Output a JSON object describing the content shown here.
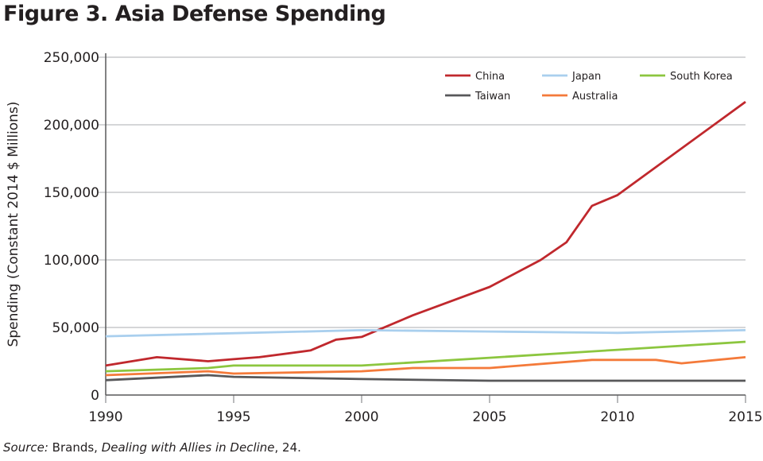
{
  "title": "Figure 3. Asia Defense Spending",
  "source": {
    "label": "Source:",
    "text1": " Brands, ",
    "work": "Dealing with Allies in Decline",
    "text2": ", 24."
  },
  "chart_data": {
    "type": "line",
    "title": "Figure 3. Asia Defense Spending",
    "xlabel": "",
    "ylabel": "Spending (Constant 2014 $ Millions)",
    "xlim": [
      1990,
      2015
    ],
    "ylim": [
      0,
      250000
    ],
    "xticks": [
      1990,
      1995,
      2000,
      2005,
      2010,
      2015
    ],
    "yticks": [
      0,
      50000,
      100000,
      150000,
      200000,
      250000
    ],
    "ytick_labels": [
      "0",
      "50,000",
      "100,000",
      "150,000",
      "200,000",
      "250,000"
    ],
    "grid": "horizontal",
    "legend": "top-right",
    "series": [
      {
        "name": "China",
        "color": "#c0282d",
        "x": [
          1990,
          1992,
          1994,
          1995,
          1996,
          1998,
          1999,
          2000,
          2002,
          2005,
          2007,
          2008,
          2009,
          2010,
          2015
        ],
        "y": [
          21800,
          28000,
          25000,
          26500,
          28000,
          33000,
          41000,
          43000,
          59000,
          80000,
          100000,
          113000,
          140000,
          148000,
          217000
        ]
      },
      {
        "name": "Japan",
        "color": "#a9cfee",
        "x": [
          1990,
          2000,
          2005,
          2010,
          2015
        ],
        "y": [
          43500,
          48000,
          47000,
          46000,
          48000
        ]
      },
      {
        "name": "South Korea",
        "color": "#8cc63f",
        "x": [
          1990,
          1994,
          1995,
          2000,
          2005,
          2010,
          2015
        ],
        "y": [
          17600,
          20000,
          21800,
          21800,
          27600,
          33500,
          39400
        ]
      },
      {
        "name": "Taiwan",
        "color": "#58585a",
        "x": [
          1990,
          1994,
          1995,
          2000,
          2005,
          2015
        ],
        "y": [
          11000,
          14700,
          13500,
          11800,
          10600,
          10600
        ]
      },
      {
        "name": "Australia",
        "color": "#f47a3a",
        "x": [
          1990,
          1994,
          1995,
          2000,
          2002,
          2005,
          2009,
          2011.5,
          2012.5,
          2015
        ],
        "y": [
          14700,
          17600,
          15900,
          17600,
          20000,
          20000,
          26000,
          26000,
          23500,
          28000
        ]
      }
    ]
  }
}
